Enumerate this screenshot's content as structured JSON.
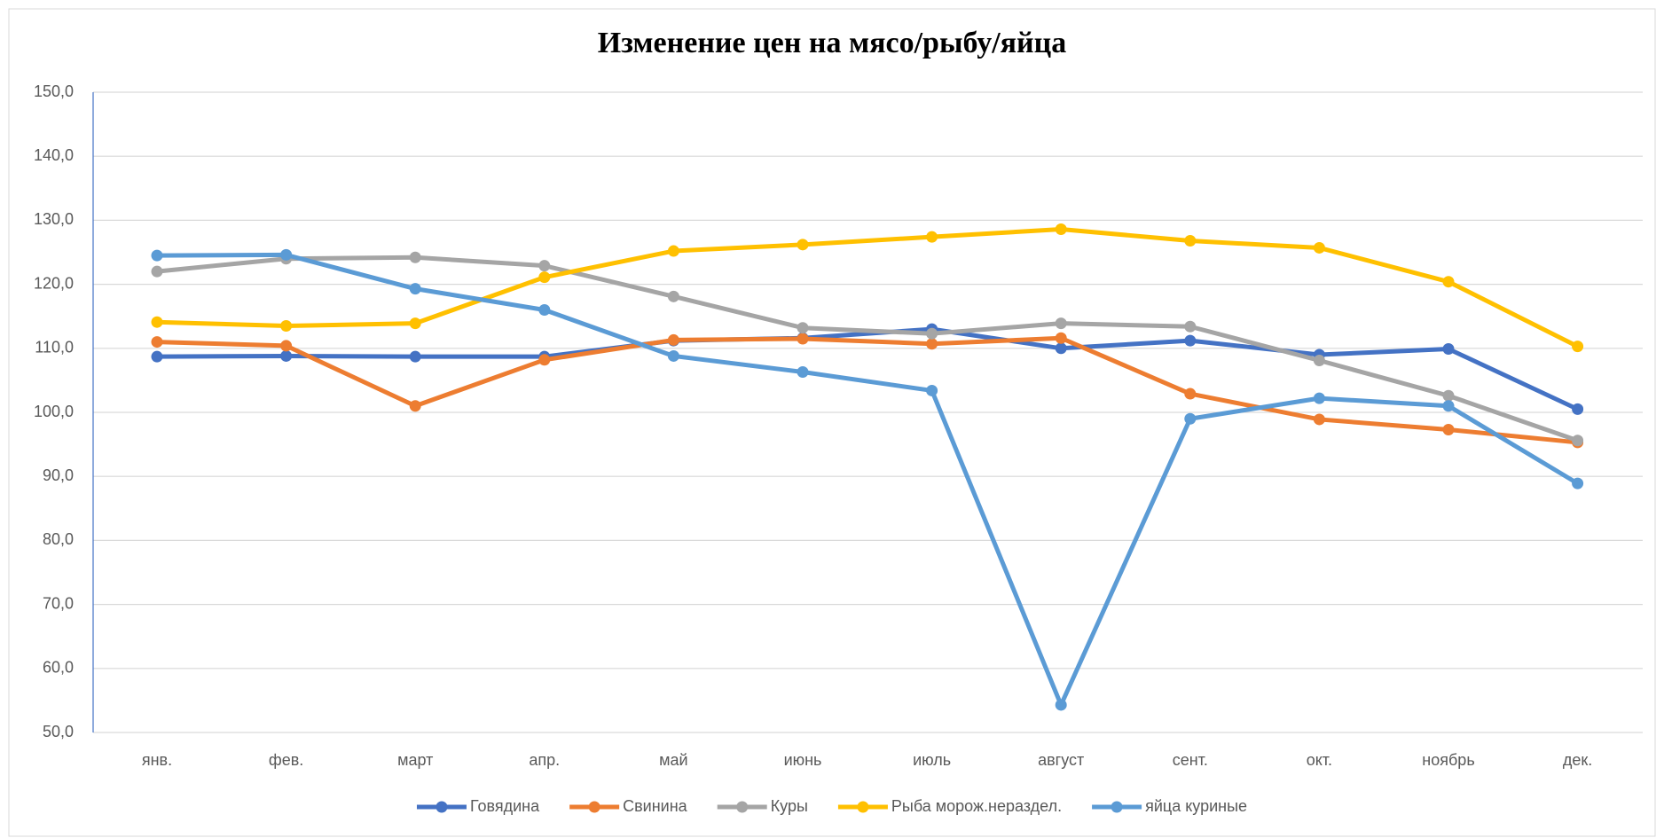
{
  "chart_data": {
    "type": "line",
    "title": "Изменение цен на мясо/рыбу/яйца",
    "categories": [
      "янв.",
      "фев.",
      "март",
      "апр.",
      "май",
      "июнь",
      "июль",
      "август",
      "сент.",
      "окт.",
      "ноябрь",
      "дек."
    ],
    "series": [
      {
        "name": "Говядина",
        "color": "#4472c4",
        "values": [
          108.7,
          108.8,
          108.7,
          108.7,
          111.2,
          111.6,
          113.0,
          110.0,
          111.2,
          109.0,
          109.9,
          100.5
        ]
      },
      {
        "name": "Свинина",
        "color": "#ed7d31",
        "values": [
          111.0,
          110.4,
          101.0,
          108.2,
          111.3,
          111.5,
          110.7,
          111.6,
          102.9,
          98.9,
          97.3,
          95.3
        ]
      },
      {
        "name": "Куры",
        "color": "#a5a5a5",
        "values": [
          122.0,
          124.0,
          124.2,
          122.9,
          118.1,
          113.2,
          112.3,
          113.9,
          113.4,
          108.1,
          102.6,
          95.6
        ]
      },
      {
        "name": "Рыба морож.нераздел.",
        "color": "#ffc000",
        "values": [
          114.1,
          113.5,
          113.9,
          121.1,
          125.2,
          126.2,
          127.4,
          128.6,
          126.8,
          125.7,
          120.4,
          110.3
        ]
      },
      {
        "name": "яйца куриные",
        "color": "#5b9bd5",
        "values": [
          124.5,
          124.6,
          119.3,
          116.0,
          108.8,
          106.3,
          103.4,
          54.3,
          99.0,
          102.2,
          101.0,
          88.9
        ]
      }
    ],
    "ylim": [
      50,
      150
    ],
    "yticks": [
      {
        "value": 50,
        "label": "50,0"
      },
      {
        "value": 60,
        "label": "60,0"
      },
      {
        "value": 70,
        "label": "70,0"
      },
      {
        "value": 80,
        "label": "80,0"
      },
      {
        "value": 90,
        "label": "90,0"
      },
      {
        "value": 100,
        "label": "100,0"
      },
      {
        "value": 110,
        "label": "110,0"
      },
      {
        "value": 120,
        "label": "120,0"
      },
      {
        "value": 130,
        "label": "130,0"
      },
      {
        "value": 140,
        "label": "140,0"
      },
      {
        "value": 150,
        "label": "150,0"
      }
    ],
    "grid": true,
    "legend": "bottom"
  }
}
